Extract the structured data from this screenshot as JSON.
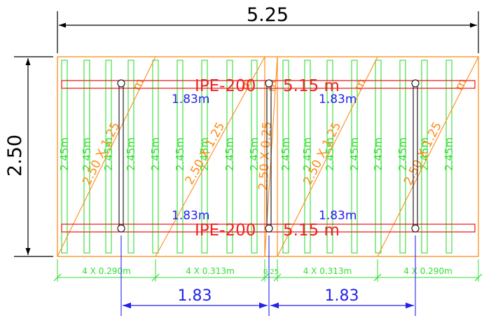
{
  "colors": {
    "background": "#ffffff",
    "dimension": "#000000",
    "board_outline": "#ff8c1a",
    "plank": "#33dd33",
    "beam": "#ee2222",
    "column_link": "#222222",
    "spacing_dim": "#2222ee"
  },
  "dimensions": {
    "overall_width": "5.25",
    "overall_height": "2.50"
  },
  "beams": {
    "top_label": "IPE-200",
    "top_length": "5.15 m",
    "bottom_label": "IPE-200",
    "bottom_length": "5.15 m"
  },
  "spacing_labels": {
    "top_left": "1.83m",
    "top_right": "1.83m",
    "bottom_left": "1.83m",
    "bottom_right": "1.83m"
  },
  "plank_length": "2.45m",
  "diagonal_labels": [
    {
      "size": "2.50 X 1.25",
      "unit": "m"
    },
    {
      "size": "2.50 X 1.25",
      "unit": "m"
    },
    {
      "size": "2.50 X 0.25",
      "unit": "m"
    },
    {
      "size": "2.50 X 1.25",
      "unit": "m"
    },
    {
      "size": "2.50 X 1.25",
      "unit": "m"
    }
  ],
  "segment_dims": [
    "4 X 0.290m",
    "4 X 0.313m",
    "0.25",
    "4 X 0.313m",
    "4 X 0.290m"
  ],
  "support_spacing": [
    "1.83",
    "1.83"
  ]
}
